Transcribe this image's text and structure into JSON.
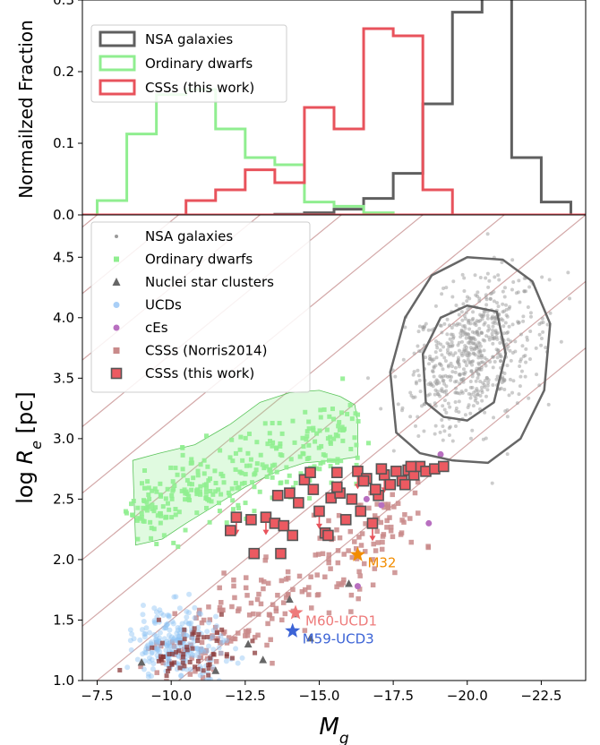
{
  "chart_data": [
    {
      "type": "histogram",
      "ylabel": "Normailzed Fraction",
      "xlim": [
        -7.0,
        -24.0
      ],
      "ylim": [
        0.0,
        0.3
      ],
      "yticks": [
        "0.0",
        "0.1",
        "0.2",
        "0.3"
      ],
      "legend_position": "top-left",
      "series": [
        {
          "name": "NSA galaxies",
          "color": "#5f5f5f",
          "bins": [
            -12.0,
            -13.0,
            -14.0,
            -15.0,
            -16.0,
            -17.0,
            -18.0,
            -19.0,
            -20.0,
            -21.0,
            -22.0,
            -23.0
          ],
          "values": [
            0.0,
            0.0,
            0.001,
            0.003,
            0.008,
            0.023,
            0.058,
            0.155,
            0.283,
            0.345,
            0.08,
            0.018
          ]
        },
        {
          "name": "Ordinary dwarfs",
          "color": "#90ee90",
          "bins": [
            -8.0,
            -9.0,
            -10.0,
            -11.0,
            -12.0,
            -13.0,
            -14.0,
            -15.0,
            -16.0,
            -17.0
          ],
          "values": [
            0.02,
            0.113,
            0.168,
            0.175,
            0.12,
            0.08,
            0.07,
            0.018,
            0.012,
            0.003
          ]
        },
        {
          "name": "CSSs (this work)",
          "color": "#e8535c",
          "bins": [
            -11.0,
            -12.0,
            -13.0,
            -14.0,
            -15.0,
            -16.0,
            -17.0,
            -18.0,
            -19.0
          ],
          "values": [
            0.02,
            0.035,
            0.063,
            0.045,
            0.15,
            0.12,
            0.26,
            0.25,
            0.035
          ]
        }
      ]
    },
    {
      "type": "scatter",
      "xlabel": "M_g",
      "ylabel": "log R_e [pc]",
      "xlim": [
        -7.0,
        -24.0
      ],
      "ylim": [
        1.0,
        4.85
      ],
      "xticks": [
        "−7.5",
        "−10.0",
        "−12.5",
        "−15.0",
        "−17.5",
        "−20.0",
        "−22.5"
      ],
      "yticks": [
        "1.0",
        "1.5",
        "2.0",
        "2.5",
        "3.0",
        "3.5",
        "4.0",
        "4.5"
      ],
      "legend_position": "top-left",
      "legend": [
        "NSA galaxies",
        "Ordinary dwarfs",
        "Nuclei star clusters",
        "UCDs",
        "cEs",
        "CSSs (Norris2014)",
        "CSSs (this work)"
      ],
      "series": [
        {
          "name": "NSA galaxies",
          "color": "#9a9a9a",
          "marker": "dot",
          "center": [
            -20.2,
            3.7
          ],
          "spread": [
            1.5,
            0.38
          ],
          "count": 650
        },
        {
          "name": "Ordinary dwarfs",
          "color": "#90ee90",
          "marker": "square",
          "center": [
            -11.5,
            2.65
          ],
          "spread": [
            2.0,
            0.28
          ],
          "count": 300
        },
        {
          "name": "Nuclei star clusters",
          "color": "#666666",
          "marker": "triangle",
          "points": [
            [
              -9.0,
              1.15
            ],
            [
              -12.6,
              1.3
            ],
            [
              -13.1,
              1.17
            ],
            [
              -14.0,
              1.67
            ],
            [
              -14.2,
              1.55
            ],
            [
              -16.0,
              1.8
            ],
            [
              -14.7,
              1.35
            ],
            [
              -11.5,
              1.08
            ]
          ]
        },
        {
          "name": "UCDs",
          "color": "#8fc3f5",
          "marker": "circle",
          "center": [
            -10.2,
            1.3
          ],
          "spread": [
            0.7,
            0.15
          ],
          "count": 260
        },
        {
          "name": "cEs",
          "color": "#b86fc0",
          "marker": "circle",
          "points": [
            [
              -19.1,
              2.87
            ],
            [
              -19.2,
              2.75
            ],
            [
              -18.7,
              2.3
            ],
            [
              -17.1,
              2.45
            ],
            [
              -16.6,
              2.5
            ],
            [
              -16.3,
              1.78
            ]
          ]
        },
        {
          "name": "CSSs (Norris2014)",
          "color": "#c98a8a",
          "marker": "square",
          "center": [
            -13.5,
            1.6
          ],
          "spread": [
            2.8,
            0.45
          ],
          "count": 230
        },
        {
          "name": "CSSs (this work)",
          "color": "#ec5a61",
          "edge": "#555555",
          "marker": "square",
          "points": [
            [
              -12.0,
              2.24
            ],
            [
              -12.2,
              2.35
            ],
            [
              -12.8,
              2.05
            ],
            [
              -13.2,
              2.35
            ],
            [
              -13.5,
              2.3
            ],
            [
              -13.7,
              2.05
            ],
            [
              -13.8,
              2.28
            ],
            [
              -14.0,
              2.55
            ],
            [
              -14.3,
              2.47
            ],
            [
              -14.5,
              2.66
            ],
            [
              -14.7,
              2.72
            ],
            [
              -14.8,
              2.58
            ],
            [
              -15.0,
              2.4
            ],
            [
              -15.2,
              2.22
            ],
            [
              -15.3,
              2.2
            ],
            [
              -15.4,
              2.51
            ],
            [
              -15.6,
              2.72
            ],
            [
              -15.7,
              2.55
            ],
            [
              -15.9,
              2.33
            ],
            [
              -16.1,
              2.5
            ],
            [
              -16.3,
              2.73
            ],
            [
              -16.4,
              2.4
            ],
            [
              -16.6,
              2.67
            ],
            [
              -16.8,
              2.3
            ],
            [
              -17.0,
              2.53
            ],
            [
              -17.2,
              2.7
            ],
            [
              -17.4,
              2.62
            ],
            [
              -17.6,
              2.73
            ],
            [
              -17.8,
              2.65
            ],
            [
              -18.0,
              2.74
            ],
            [
              -18.2,
              2.7
            ],
            [
              -18.4,
              2.77
            ],
            [
              -18.6,
              2.73
            ],
            [
              -18.9,
              2.75
            ],
            [
              -19.2,
              2.77
            ],
            [
              -16.5,
              2.65
            ],
            [
              -17.1,
              2.75
            ],
            [
              -17.9,
              2.62
            ],
            [
              -12.7,
              2.33
            ],
            [
              -14.1,
              2.2
            ],
            [
              -15.6,
              2.6
            ],
            [
              -16.9,
              2.58
            ],
            [
              -13.6,
              2.53
            ],
            [
              -18.1,
              2.77
            ]
          ],
          "upper_limits": [
            [
              -12.2,
              2.35
            ],
            [
              -13.2,
              2.35
            ],
            [
              -15.0,
              2.4
            ],
            [
              -16.3,
              2.73
            ],
            [
              -16.8,
              2.3
            ],
            [
              -17.2,
              2.7
            ]
          ]
        }
      ],
      "contours": {
        "series": "NSA galaxies",
        "levels": 2,
        "color": "#666666"
      },
      "dwarf_band": {
        "color": "#90ee90"
      },
      "diagonal_lines": {
        "color": "#d3a8a8",
        "count": 9
      },
      "annotations": [
        {
          "text": "M32",
          "x": -16.3,
          "y": 2.04,
          "color": "#f28c00",
          "marker": "star"
        },
        {
          "text": "M60-UCD1",
          "x": -14.2,
          "y": 1.56,
          "color": "#ee7a7a",
          "marker": "star"
        },
        {
          "text": "M59-UCD3",
          "x": -14.1,
          "y": 1.41,
          "color": "#3b63d6",
          "marker": "star"
        }
      ]
    }
  ]
}
